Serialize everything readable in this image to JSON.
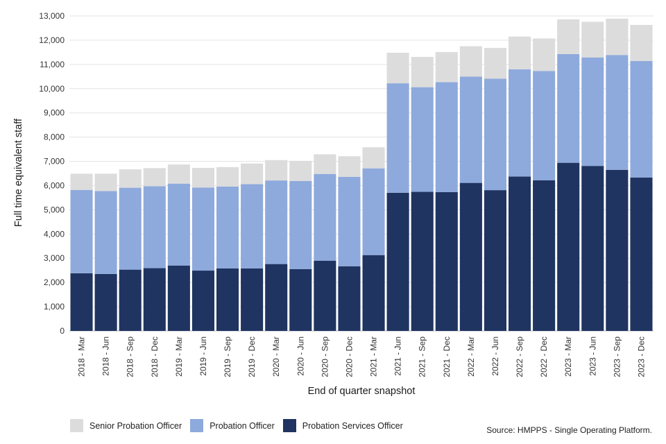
{
  "chart_data": {
    "type": "bar",
    "stacked": true,
    "xlabel": "End of quarter snapshot",
    "ylabel": "Full time equivalent staff",
    "ylim": [
      0,
      13000
    ],
    "yticks": [
      0,
      1000,
      2000,
      3000,
      4000,
      5000,
      6000,
      7000,
      8000,
      9000,
      10000,
      11000,
      12000,
      13000
    ],
    "ytick_labels": [
      "0",
      "1,000",
      "2,000",
      "3,000",
      "4,000",
      "5,000",
      "6,000",
      "7,000",
      "8,000",
      "9,000",
      "10,000",
      "11,000",
      "12,000",
      "13,000"
    ],
    "grid": true,
    "legend_position": "bottom-left",
    "categories": [
      "2018 - Mar",
      "2018 - Jun",
      "2018 - Sep",
      "2018 - Dec",
      "2019 - Mar",
      "2019 - Jun",
      "2019 - Sep",
      "2019 - Dec",
      "2020 - Mar",
      "2020 - Jun",
      "2020 - Sep",
      "2020 - Dec",
      "2021 - Mar",
      "2021 - Jun",
      "2021 - Sep",
      "2021 - Dec",
      "2022 - Mar",
      "2022 - Jun",
      "2022 - Sep",
      "2022 - Dec",
      "2023 - Mar",
      "2023 - Jun",
      "2023 - Sep",
      "2023 - Dec"
    ],
    "series": [
      {
        "name": "Probation Services Officer",
        "color": "#1f3461",
        "values": [
          2380,
          2350,
          2530,
          2590,
          2700,
          2490,
          2580,
          2580,
          2760,
          2550,
          2900,
          2670,
          3130,
          5700,
          5740,
          5730,
          6110,
          5810,
          6370,
          6220,
          6940,
          6810,
          6650,
          6330
        ]
      },
      {
        "name": "Probation Officer",
        "color": "#8eaadc",
        "values": [
          3440,
          3420,
          3380,
          3380,
          3380,
          3430,
          3380,
          3480,
          3450,
          3640,
          3580,
          3690,
          3580,
          4520,
          4320,
          4540,
          4390,
          4600,
          4430,
          4510,
          4490,
          4480,
          4740,
          4810
        ]
      },
      {
        "name": "Senior Probation Officer",
        "color": "#dcdcdc",
        "values": [
          670,
          720,
          760,
          750,
          790,
          810,
          800,
          850,
          840,
          830,
          810,
          850,
          870,
          1260,
          1250,
          1240,
          1250,
          1270,
          1350,
          1340,
          1430,
          1470,
          1500,
          1490
        ]
      }
    ],
    "legend_order": [
      "Senior Probation Officer",
      "Probation Officer",
      "Probation Services Officer"
    ],
    "source": "Source: HMPPS - Single Operating Platform."
  }
}
